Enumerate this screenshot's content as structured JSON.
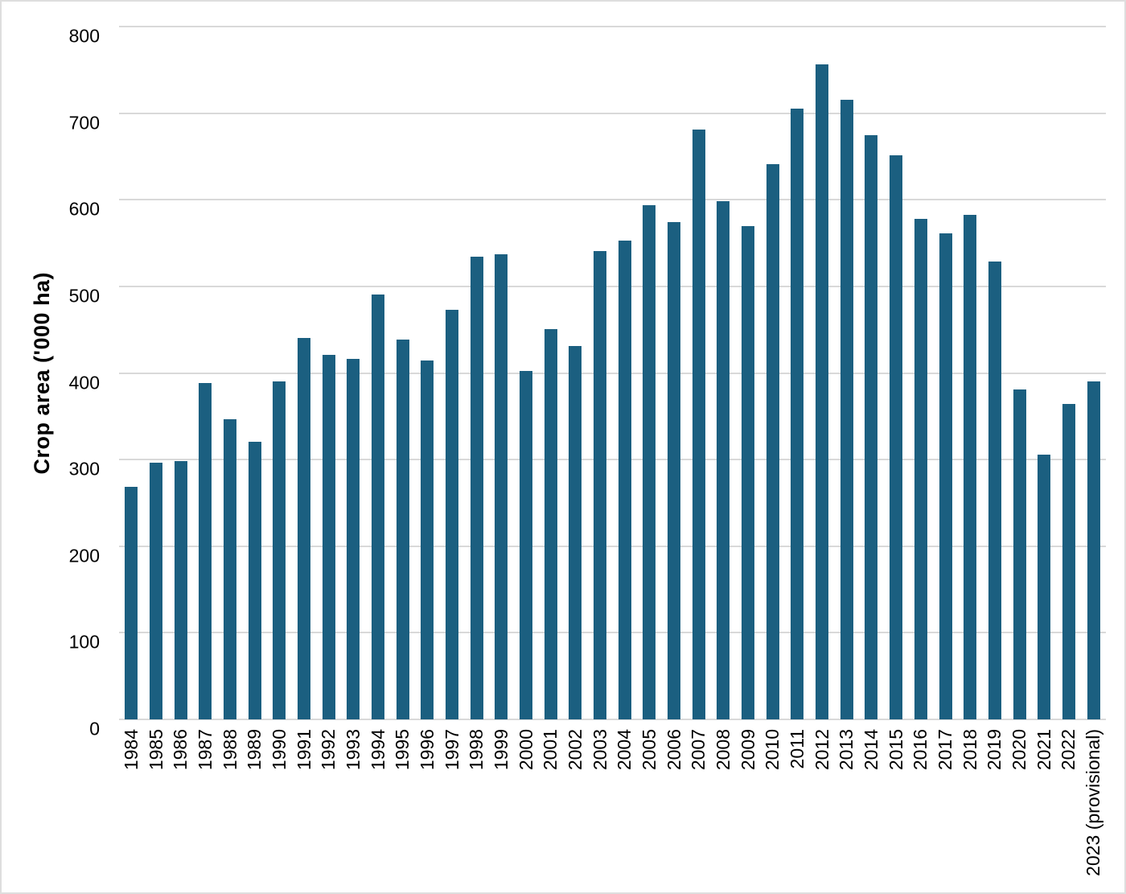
{
  "chart_data": {
    "type": "bar",
    "title": "",
    "xlabel": "",
    "ylabel": "Crop area ('000 ha)",
    "categories": [
      "1984",
      "1985",
      "1986",
      "1987",
      "1988",
      "1989",
      "1990",
      "1991",
      "1992",
      "1993",
      "1994",
      "1995",
      "1996",
      "1997",
      "1998",
      "1999",
      "2000",
      "2001",
      "2002",
      "2003",
      "2004",
      "2005",
      "2006",
      "2007",
      "2008",
      "2009",
      "2010",
      "2011",
      "2012",
      "2013",
      "2014",
      "2015",
      "2016",
      "2017",
      "2018",
      "2019",
      "2020",
      "2021",
      "2022",
      "2023 (provisional)"
    ],
    "values": [
      269,
      296,
      298,
      388,
      347,
      321,
      390,
      440,
      421,
      416,
      491,
      439,
      414,
      473,
      534,
      537,
      402,
      451,
      431,
      541,
      553,
      594,
      574,
      681,
      598,
      570,
      641,
      705,
      756,
      715,
      675,
      651,
      578,
      561,
      583,
      529,
      381,
      306,
      364,
      390
    ],
    "ylim": [
      0,
      800
    ],
    "yticks": [
      0,
      100,
      200,
      300,
      400,
      500,
      600,
      700,
      800
    ],
    "grid": "horizontal",
    "legend": "none"
  },
  "colors": {
    "bar": "#1b5f80",
    "gridline": "#d9d9d9",
    "border": "#dedede",
    "text": "#000000"
  }
}
